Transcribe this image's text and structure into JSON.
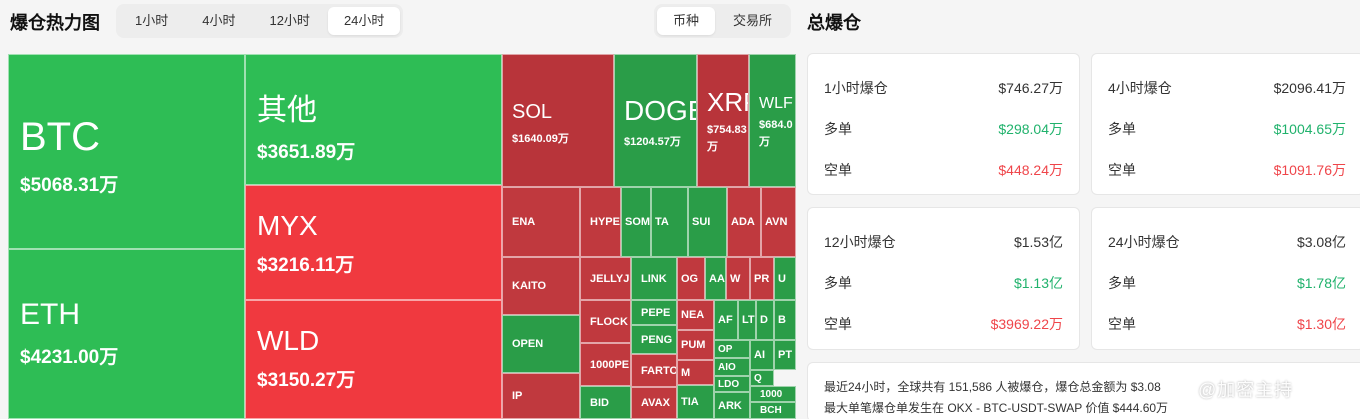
{
  "header": {
    "title": "爆仓热力图",
    "time_tabs": [
      "1小时",
      "4小时",
      "12小时",
      "24小时"
    ],
    "active_time_tab": "24小时",
    "type_tabs": [
      "币种",
      "交易所"
    ],
    "active_type_tab": "币种"
  },
  "treemap": {
    "colors": {
      "long_dominant": "#2ebd55",
      "short_dominant": "#f0393f"
    },
    "tiles": [
      {
        "name": "BTC",
        "value": "$5068.31万",
        "side": "green"
      },
      {
        "name": "ETH",
        "value": "$4231.00万",
        "side": "green"
      },
      {
        "name": "其他",
        "value": "$3651.89万",
        "side": "green"
      },
      {
        "name": "MYX",
        "value": "$3216.11万",
        "side": "red"
      },
      {
        "name": "WLD",
        "value": "$3150.27万",
        "side": "red"
      },
      {
        "name": "SOL",
        "value": "$1640.09万",
        "side": "red"
      },
      {
        "name": "DOGE",
        "value": "$1204.57万",
        "side": "green"
      },
      {
        "name": "XRP",
        "value": "$754.83万",
        "side": "red"
      },
      {
        "name": "WLF",
        "value": "$684.0万",
        "side": "green"
      },
      {
        "name": "ENA",
        "side": "red"
      },
      {
        "name": "HYPE",
        "side": "red"
      },
      {
        "name": "SOMI",
        "side": "green"
      },
      {
        "name": "TA",
        "side": "green"
      },
      {
        "name": "SUI",
        "side": "green"
      },
      {
        "name": "ADA",
        "side": "red"
      },
      {
        "name": "AVN",
        "side": "red"
      },
      {
        "name": "KAITO",
        "side": "red"
      },
      {
        "name": "JELLYJE",
        "side": "red"
      },
      {
        "name": "LINK",
        "side": "green"
      },
      {
        "name": "OG",
        "side": "red"
      },
      {
        "name": "AA",
        "side": "green"
      },
      {
        "name": "W",
        "side": "red"
      },
      {
        "name": "PR",
        "side": "red"
      },
      {
        "name": "U",
        "side": "green"
      },
      {
        "name": "OPEN",
        "side": "green"
      },
      {
        "name": "FLOCK",
        "side": "red"
      },
      {
        "name": "PEPE",
        "side": "green"
      },
      {
        "name": "NEA",
        "side": "red"
      },
      {
        "name": "AF",
        "side": "green"
      },
      {
        "name": "LT",
        "side": "green"
      },
      {
        "name": "D",
        "side": "green"
      },
      {
        "name": "B",
        "side": "green"
      },
      {
        "name": "PENG",
        "side": "green"
      },
      {
        "name": "PUM",
        "side": "red"
      },
      {
        "name": "OP",
        "side": "green"
      },
      {
        "name": "AI",
        "side": "green"
      },
      {
        "name": "PT",
        "side": "green"
      },
      {
        "name": "1000PE",
        "side": "red"
      },
      {
        "name": "AIO",
        "side": "green"
      },
      {
        "name": "Q",
        "side": "green"
      },
      {
        "name": "M",
        "side": "red"
      },
      {
        "name": "IP",
        "side": "red"
      },
      {
        "name": "FARTO",
        "side": "red"
      },
      {
        "name": "LDO",
        "side": "green"
      },
      {
        "name": "1000",
        "side": "green"
      },
      {
        "name": "BID",
        "side": "green"
      },
      {
        "name": "AVAX",
        "side": "red"
      },
      {
        "name": "TIA",
        "side": "green"
      },
      {
        "name": "ARK",
        "side": "green"
      },
      {
        "name": "BCH",
        "side": "green"
      }
    ]
  },
  "summary": {
    "title": "总爆仓",
    "long_label": "多单",
    "short_label": "空单",
    "colors": {
      "long": "#20b26c",
      "short": "#ef454a"
    },
    "cards": [
      {
        "period": "1小时爆仓",
        "total": "$746.27万",
        "long": "$298.04万",
        "short": "$448.24万"
      },
      {
        "period": "4小时爆仓",
        "total": "$2096.41万",
        "long": "$1004.65万",
        "short": "$1091.76万"
      },
      {
        "period": "12小时爆仓",
        "total": "$1.53亿",
        "long": "$1.13亿",
        "short": "$3969.22万"
      },
      {
        "period": "24小时爆仓",
        "total": "$3.08亿",
        "long": "$1.78亿",
        "short": "$1.30亿"
      }
    ],
    "note_line1": "最近24小时，全球共有 151,586 人被爆仓，爆仓总金额为 $3.08",
    "note_line2": "最大单笔爆仓单发生在 OKX - BTC-USDT-SWAP 价值 $444.60万"
  },
  "watermark": "@加密主持"
}
